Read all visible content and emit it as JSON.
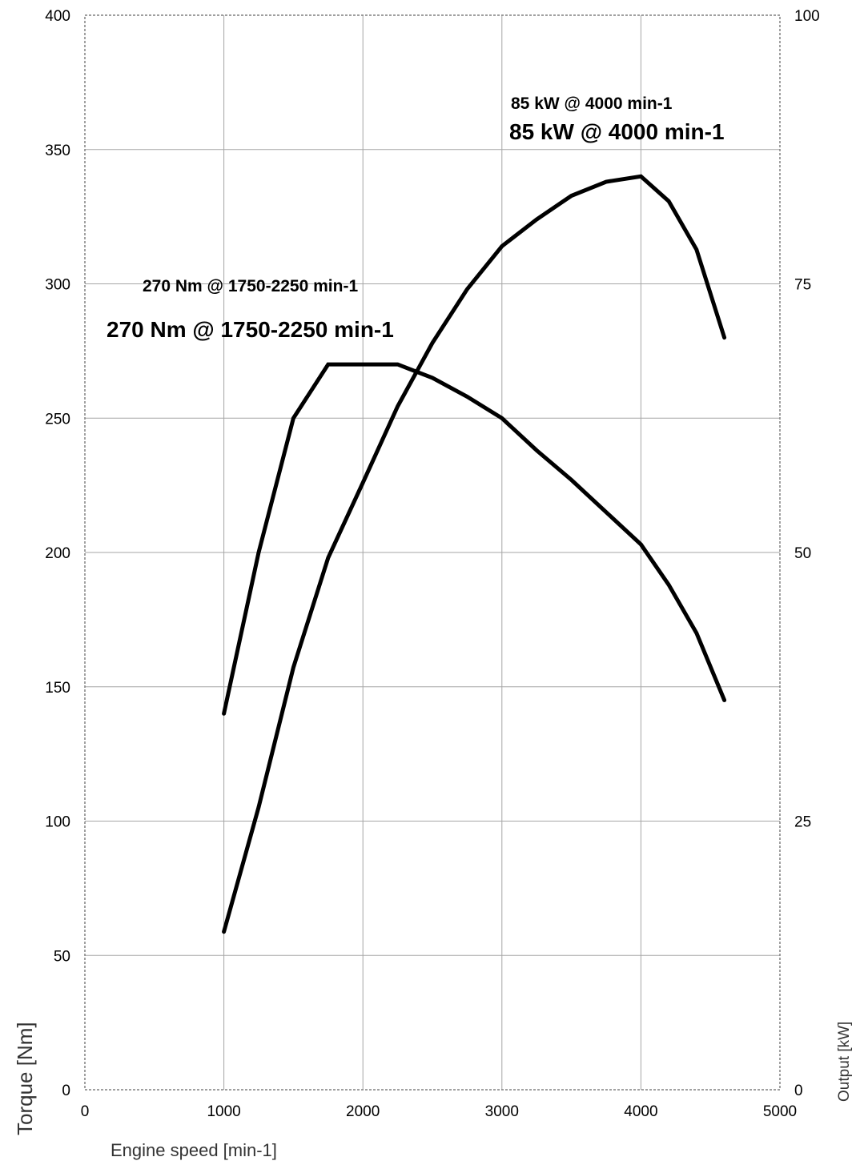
{
  "chart_data": {
    "type": "line",
    "xlabel": "Engine speed [min-1]",
    "ylabel": "Torque [Nm]",
    "y2label": "Output [kW]",
    "xlim": [
      0,
      5000
    ],
    "ylim": [
      0,
      400
    ],
    "y2lim": [
      0,
      100
    ],
    "x_ticks": [
      "0",
      "1000",
      "2000",
      "3000",
      "4000",
      "5000"
    ],
    "y_ticks": [
      "0",
      "50",
      "100",
      "150",
      "200",
      "250",
      "300",
      "350",
      "400"
    ],
    "y2_ticks": [
      "0",
      "25",
      "50",
      "75",
      "100"
    ],
    "grid": true,
    "legend": "none",
    "series": [
      {
        "axis": "left",
        "color": "#000000",
        "x": [
          1000,
          1250,
          1500,
          1750,
          2000,
          2250,
          2500,
          2750,
          3000,
          3250,
          3500,
          3750,
          4000,
          4200,
          4400,
          4600
        ],
        "values": [
          140,
          200,
          250,
          270,
          270,
          270,
          265,
          258,
          250,
          238,
          227,
          215,
          203,
          188,
          170,
          145
        ]
      },
      {
        "axis": "right",
        "color": "#000000",
        "x": [
          1000,
          1250,
          1500,
          1750,
          2000,
          2250,
          2500,
          2750,
          3000,
          3250,
          3500,
          3750,
          4000,
          4200,
          4400,
          4600
        ],
        "values": [
          14.7,
          26.3,
          39.3,
          49.5,
          56.5,
          63.6,
          69.5,
          74.5,
          78.5,
          81.0,
          83.2,
          84.5,
          85.0,
          82.7,
          78.2,
          70.0
        ]
      }
    ],
    "annotations": [
      {
        "text_small": "270 Nm @ 1750-2250 min-1",
        "text_large": "270 Nm @ 1750-2250 min-1"
      },
      {
        "text_small": "85 kW @ 4000 min-1",
        "text_large": "85 kW @ 4000 min-1"
      }
    ]
  }
}
